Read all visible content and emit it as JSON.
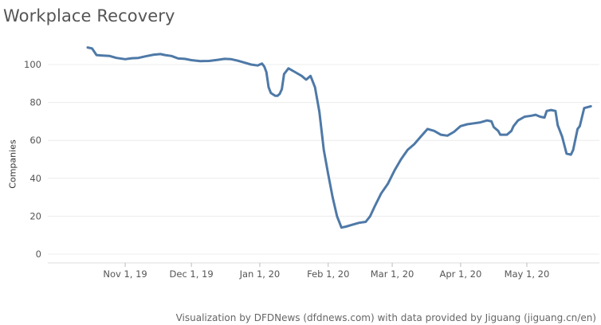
{
  "chart_data": {
    "type": "line",
    "title": "Workplace Recovery",
    "ylabel": "Companies",
    "xlabel": "",
    "ylim": [
      0,
      115
    ],
    "y_ticks": [
      0,
      20,
      40,
      60,
      80,
      100
    ],
    "x_range": [
      "2019-10-02",
      "2020-05-31"
    ],
    "x_ticks": [
      {
        "date": "2019-11-01",
        "label": "Nov 1, 19"
      },
      {
        "date": "2019-12-01",
        "label": "Dec 1, 19"
      },
      {
        "date": "2020-01-01",
        "label": "Jan 1, 20"
      },
      {
        "date": "2020-02-01",
        "label": "Feb 1, 20"
      },
      {
        "date": "2020-03-01",
        "label": "Mar 1, 20"
      },
      {
        "date": "2020-04-01",
        "label": "Apr 1, 20"
      },
      {
        "date": "2020-05-01",
        "label": "May 1, 20"
      }
    ],
    "grid": "horizontal",
    "line_color": "#4e79a7",
    "series": [
      {
        "name": "",
        "points": [
          [
            "2019-10-15",
            109.0
          ],
          [
            "2019-10-17",
            108.5
          ],
          [
            "2019-10-19",
            105.0
          ],
          [
            "2019-10-21",
            104.8
          ],
          [
            "2019-10-25",
            104.5
          ],
          [
            "2019-10-28",
            103.5
          ],
          [
            "2019-11-01",
            102.8
          ],
          [
            "2019-11-04",
            103.3
          ],
          [
            "2019-11-07",
            103.5
          ],
          [
            "2019-11-10",
            104.3
          ],
          [
            "2019-11-14",
            105.2
          ],
          [
            "2019-11-17",
            105.5
          ],
          [
            "2019-11-19",
            105.0
          ],
          [
            "2019-11-22",
            104.5
          ],
          [
            "2019-11-25",
            103.2
          ],
          [
            "2019-11-28",
            103.0
          ],
          [
            "2019-12-01",
            102.3
          ],
          [
            "2019-12-05",
            101.8
          ],
          [
            "2019-12-09",
            101.9
          ],
          [
            "2019-12-13",
            102.5
          ],
          [
            "2019-12-16",
            103.0
          ],
          [
            "2019-12-19",
            102.8
          ],
          [
            "2019-12-22",
            102.0
          ],
          [
            "2019-12-25",
            101.0
          ],
          [
            "2019-12-28",
            100.0
          ],
          [
            "2019-12-31",
            99.5
          ],
          [
            "2020-01-02",
            100.5
          ],
          [
            "2020-01-03",
            99.0
          ],
          [
            "2020-01-04",
            96.0
          ],
          [
            "2020-01-05",
            88.0
          ],
          [
            "2020-01-06",
            85.0
          ],
          [
            "2020-01-08",
            83.5
          ],
          [
            "2020-01-09",
            83.5
          ],
          [
            "2020-01-10",
            84.5
          ],
          [
            "2020-01-11",
            87.0
          ],
          [
            "2020-01-12",
            95.0
          ],
          [
            "2020-01-14",
            98.0
          ],
          [
            "2020-01-17",
            96.0
          ],
          [
            "2020-01-20",
            94.0
          ],
          [
            "2020-01-22",
            92.0
          ],
          [
            "2020-01-24",
            94.0
          ],
          [
            "2020-01-26",
            88.0
          ],
          [
            "2020-01-28",
            75.0
          ],
          [
            "2020-01-30",
            55.0
          ],
          [
            "2020-02-01",
            42.0
          ],
          [
            "2020-02-03",
            30.0
          ],
          [
            "2020-02-05",
            20.0
          ],
          [
            "2020-02-07",
            14.0
          ],
          [
            "2020-02-09",
            14.5
          ],
          [
            "2020-02-12",
            15.5
          ],
          [
            "2020-02-15",
            16.5
          ],
          [
            "2020-02-18",
            17.0
          ],
          [
            "2020-02-20",
            20.0
          ],
          [
            "2020-02-22",
            25.0
          ],
          [
            "2020-02-25",
            32.0
          ],
          [
            "2020-02-28",
            37.0
          ],
          [
            "2020-03-02",
            44.0
          ],
          [
            "2020-03-05",
            50.0
          ],
          [
            "2020-03-08",
            55.0
          ],
          [
            "2020-03-11",
            58.0
          ],
          [
            "2020-03-14",
            62.0
          ],
          [
            "2020-03-17",
            66.0
          ],
          [
            "2020-03-20",
            65.0
          ],
          [
            "2020-03-23",
            63.0
          ],
          [
            "2020-03-26",
            62.5
          ],
          [
            "2020-03-29",
            64.5
          ],
          [
            "2020-04-01",
            67.5
          ],
          [
            "2020-04-04",
            68.5
          ],
          [
            "2020-04-07",
            69.0
          ],
          [
            "2020-04-10",
            69.5
          ],
          [
            "2020-04-13",
            70.5
          ],
          [
            "2020-04-15",
            70.0
          ],
          [
            "2020-04-16",
            67.0
          ],
          [
            "2020-04-18",
            65.0
          ],
          [
            "2020-04-19",
            63.0
          ],
          [
            "2020-04-22",
            63.0
          ],
          [
            "2020-04-24",
            65.0
          ],
          [
            "2020-04-25",
            67.5
          ],
          [
            "2020-04-27",
            70.5
          ],
          [
            "2020-04-30",
            72.5
          ],
          [
            "2020-05-03",
            73.0
          ],
          [
            "2020-05-05",
            73.5
          ],
          [
            "2020-05-07",
            72.5
          ],
          [
            "2020-05-09",
            72.0
          ],
          [
            "2020-05-10",
            75.5
          ],
          [
            "2020-05-12",
            76.0
          ],
          [
            "2020-05-14",
            75.5
          ],
          [
            "2020-05-15",
            68.0
          ],
          [
            "2020-05-17",
            62.0
          ],
          [
            "2020-05-19",
            53.0
          ],
          [
            "2020-05-21",
            52.5
          ],
          [
            "2020-05-22",
            55.0
          ],
          [
            "2020-05-24",
            66.0
          ],
          [
            "2020-05-25",
            67.5
          ],
          [
            "2020-05-27",
            77.0
          ],
          [
            "2020-05-30",
            78.0
          ]
        ]
      }
    ],
    "credit": "Visualization by DFDNews (dfdnews.com) with data provided by Jiguang (jiguang.cn/en)"
  }
}
